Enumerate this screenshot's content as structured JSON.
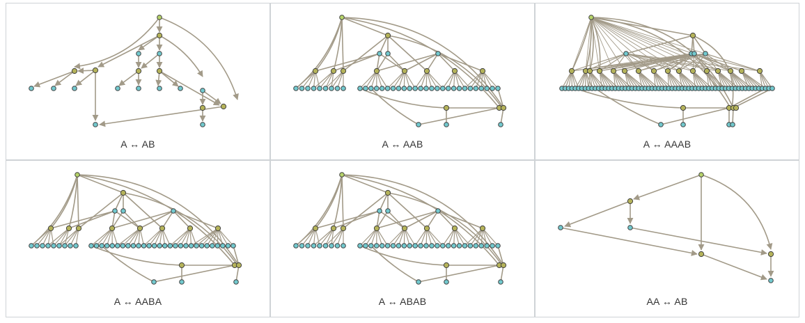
{
  "colors": {
    "root_node": "#b6d36a",
    "mid_node": "#b5b35a",
    "leaf_node": "#72c9ce",
    "node_stroke": "#3f3f3f",
    "edge": "#a29a88",
    "panel_border": "#cfd3d6"
  },
  "panels": [
    {
      "label": "A ↔ AB"
    },
    {
      "label": "A ↔ AAB"
    },
    {
      "label": "A ↔ AAAB"
    },
    {
      "label": "A ↔ AABA"
    },
    {
      "label": "A ↔ ABAB"
    },
    {
      "label": "AA ↔ AB"
    }
  ]
}
